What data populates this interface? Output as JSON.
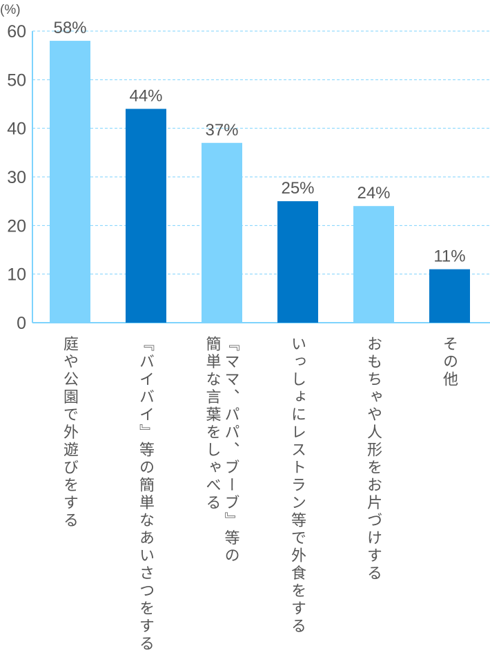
{
  "chart_data": {
    "type": "bar",
    "unit_label": "(%)",
    "categories": [
      "庭や公園で外遊びをする",
      "『バイバイ』等の簡単なあいさつをする",
      "『ママ、パパ、ブーブ』等の\n簡単な言葉をしゃべる",
      "いっしょにレストラン等で外食をする",
      "おもちゃや人形をお片づけする",
      "その他"
    ],
    "values": [
      58,
      44,
      37,
      25,
      24,
      11
    ],
    "data_labels": [
      "58%",
      "44%",
      "37%",
      "25%",
      "24%",
      "11%"
    ],
    "bar_colors": [
      "#7dd3fd",
      "#0077c8",
      "#7dd3fd",
      "#0077c8",
      "#7dd3fd",
      "#0077c8"
    ],
    "ylim": [
      0,
      60
    ],
    "yticks": [
      0,
      10,
      20,
      30,
      40,
      50,
      60
    ],
    "grid": true,
    "grid_color": "#7dd3fd",
    "axis_color": "#7dd3fd"
  }
}
